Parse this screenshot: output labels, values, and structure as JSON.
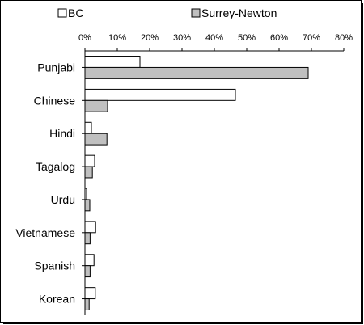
{
  "chart_data": {
    "type": "bar",
    "orientation": "horizontal",
    "categories": [
      "Punjabi",
      "Chinese",
      "Hindi",
      "Tagalog",
      "Urdu",
      "Vietnamese",
      "Spanish",
      "Korean"
    ],
    "series": [
      {
        "name": "BC",
        "values": [
          17,
          46.5,
          2,
          3,
          0.5,
          3.3,
          2.8,
          3.2
        ]
      },
      {
        "name": "Surrey-Newton",
        "values": [
          69,
          7,
          6.8,
          2.3,
          1.5,
          1.6,
          1.6,
          1.3
        ]
      }
    ],
    "xlim": [
      0,
      80
    ],
    "xticks": [
      "0%",
      "10%",
      "20%",
      "30%",
      "40%",
      "50%",
      "60%",
      "70%",
      "80%"
    ],
    "xaxis_position": "top",
    "grid": false,
    "legend_position": "top",
    "colors": {
      "BC": "#ffffff",
      "Surrey-Newton": "#c0c0c0",
      "outline": "#000000"
    }
  }
}
